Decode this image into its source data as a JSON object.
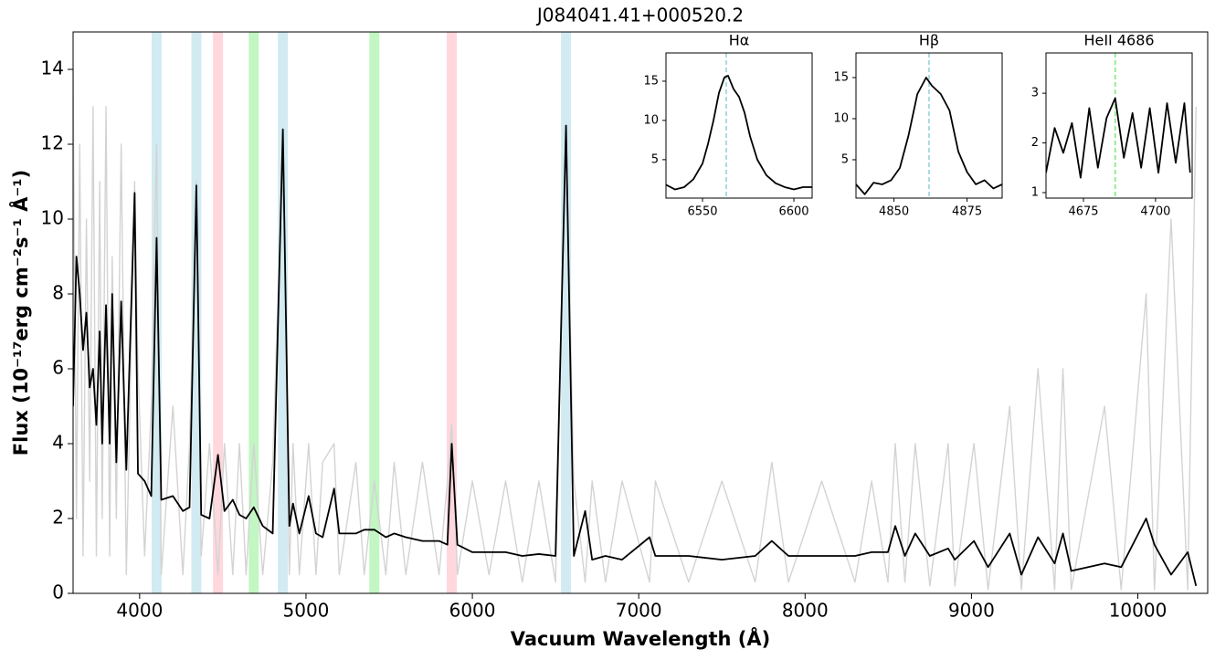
{
  "chart_data": [
    {
      "type": "line",
      "title": "J084041.41+000520.2",
      "x_label": "Vacuum Wavelength (Å)",
      "y_label": "Flux (10⁻¹⁷erg cm⁻²s⁻¹ Å⁻¹)",
      "xlim": [
        3600,
        10420
      ],
      "ylim": [
        0,
        15
      ],
      "xticks": [
        4000,
        5000,
        6000,
        7000,
        8000,
        9000,
        10000
      ],
      "yticks": [
        0,
        2,
        4,
        6,
        8,
        10,
        12,
        14
      ],
      "bands": [
        {
          "x": [
            4072,
            4132
          ],
          "color": "#add8e6"
        },
        {
          "x": [
            4311,
            4371
          ],
          "color": "#add8e6"
        },
        {
          "x": [
            4441,
            4501
          ],
          "color": "#ffb6c1"
        },
        {
          "x": [
            4656,
            4716
          ],
          "color": "#90ee90"
        },
        {
          "x": [
            4831,
            4891
          ],
          "color": "#add8e6"
        },
        {
          "x": [
            5381,
            5441
          ],
          "color": "#90ee90"
        },
        {
          "x": [
            5846,
            5906
          ],
          "color": "#ffb6c1"
        },
        {
          "x": [
            6533,
            6593
          ],
          "color": "#add8e6"
        }
      ],
      "x": [
        3600,
        3620,
        3640,
        3660,
        3680,
        3700,
        3720,
        3740,
        3760,
        3775,
        3798,
        3820,
        3835,
        3860,
        3889,
        3920,
        3970,
        3990,
        4030,
        4070,
        4102,
        4130,
        4200,
        4260,
        4300,
        4341,
        4370,
        4420,
        4471,
        4510,
        4560,
        4600,
        4640,
        4686,
        4740,
        4800,
        4861,
        4900,
        4922,
        4960,
        5016,
        5060,
        5100,
        5169,
        5200,
        5300,
        5350,
        5411,
        5480,
        5530,
        5600,
        5700,
        5800,
        5850,
        5876,
        5910,
        6000,
        6100,
        6200,
        6300,
        6400,
        6500,
        6563,
        6610,
        6678,
        6720,
        6800,
        6900,
        7065,
        7100,
        7300,
        7500,
        7700,
        7800,
        7900,
        8100,
        8300,
        8400,
        8498,
        8542,
        8600,
        8662,
        8750,
        8860,
        8900,
        9015,
        9100,
        9230,
        9300,
        9400,
        9500,
        9550,
        9600,
        9800,
        9900,
        10050,
        10100,
        10200,
        10300,
        10350
      ],
      "series": [
        {
          "color": "#d3d3d3",
          "values": [
            14,
            2,
            12,
            1,
            10,
            3,
            13,
            1,
            11,
            2,
            13,
            1,
            9,
            2,
            12,
            0.5,
            11,
            6,
            1,
            5,
            12,
            0.5,
            5,
            0.5,
            4,
            11,
            1,
            4,
            0.5,
            4,
            0.5,
            4,
            0.5,
            4,
            0.5,
            3.5,
            12,
            0.5,
            4,
            0.5,
            4,
            0.5,
            3.5,
            4,
            0.5,
            3.5,
            0.5,
            3,
            0.5,
            3.5,
            0.5,
            3.5,
            0.5,
            3,
            4.5,
            0.5,
            3,
            0.5,
            3,
            0.3,
            3,
            0.3,
            12.5,
            3,
            0.3,
            3,
            0.3,
            3,
            0.3,
            3,
            0.3,
            3,
            0.3,
            3.5,
            0.3,
            3,
            0.3,
            3,
            0.3,
            4,
            0.3,
            4,
            0.2,
            4,
            0.2,
            4,
            0.1,
            5,
            0.1,
            6,
            0.1,
            6,
            0.1,
            5,
            0.1,
            8,
            0.1,
            10,
            0.1,
            13
          ]
        },
        {
          "color": "#000000",
          "values": [
            5,
            9,
            8,
            6.5,
            7.5,
            5.5,
            6,
            4.5,
            7,
            4,
            7.7,
            4,
            8,
            3.5,
            7.8,
            3.3,
            10.7,
            3.2,
            3,
            2.6,
            9.5,
            2.5,
            2.6,
            2.2,
            2.3,
            10.9,
            2.1,
            2,
            3.7,
            2.2,
            2.5,
            2.1,
            2,
            2.3,
            1.8,
            1.6,
            12.4,
            1.8,
            2.4,
            1.6,
            2.6,
            1.6,
            1.5,
            2.8,
            1.6,
            1.6,
            1.7,
            1.7,
            1.5,
            1.6,
            1.5,
            1.4,
            1.4,
            1.3,
            4.0,
            1.3,
            1.1,
            1.1,
            1.1,
            1,
            1.05,
            1,
            12.5,
            1,
            2.2,
            0.9,
            1,
            0.9,
            1.5,
            1,
            1,
            0.9,
            1,
            1.4,
            1,
            1,
            1,
            1.1,
            1.1,
            1.8,
            1,
            1.6,
            1,
            1.2,
            0.9,
            1.4,
            0.7,
            1.6,
            0.5,
            1.5,
            0.8,
            1.6,
            0.6,
            0.8,
            0.7,
            2,
            1.3,
            0.5,
            1.1,
            0.2
          ]
        }
      ]
    },
    {
      "type": "line",
      "title": "Hα",
      "xlim": [
        6530,
        6610
      ],
      "ylim": [
        0.1,
        18.6
      ],
      "xticks": [
        6550,
        6600
      ],
      "yticks": [
        5,
        10,
        15
      ],
      "vline": {
        "x": 6563,
        "color": "#9ad0d8"
      },
      "x": [
        6530,
        6535,
        6540,
        6545,
        6550,
        6553,
        6556,
        6559,
        6562,
        6564,
        6567,
        6570,
        6573,
        6576,
        6580,
        6585,
        6590,
        6595,
        6600,
        6605,
        6610
      ],
      "series": [
        {
          "color": "#000000",
          "values": [
            1.8,
            1.2,
            1.5,
            2.5,
            4.5,
            7,
            10,
            13.5,
            15.5,
            15.7,
            14,
            13,
            11,
            8,
            5,
            3,
            2,
            1.5,
            1.2,
            1.5,
            1.5
          ]
        }
      ]
    },
    {
      "type": "line",
      "title": "Hβ",
      "xlim": [
        4837,
        4887
      ],
      "ylim": [
        0.33,
        18
      ],
      "xticks": [
        4850,
        4875
      ],
      "yticks": [
        5,
        10,
        15
      ],
      "vline": {
        "x": 4862,
        "color": "#9ad0d8"
      },
      "x": [
        4837,
        4840,
        4843,
        4846,
        4849,
        4852,
        4855,
        4858,
        4861,
        4863,
        4866,
        4869,
        4872,
        4875,
        4878,
        4881,
        4884,
        4887
      ],
      "series": [
        {
          "color": "#000000",
          "values": [
            2,
            0.8,
            2.2,
            2,
            2.5,
            4,
            8,
            13,
            15,
            14,
            13,
            11,
            6,
            3.5,
            2,
            2.5,
            1.5,
            2
          ]
        }
      ]
    },
    {
      "type": "line",
      "title": "HeII 4686",
      "xlim": [
        4662,
        4712.7
      ],
      "ylim": [
        0.89,
        3.81
      ],
      "xticks": [
        4675,
        4700
      ],
      "yticks": [
        1,
        2,
        3
      ],
      "vline": {
        "x": 4686,
        "color": "#7ee87e"
      },
      "x": [
        4662,
        4665,
        4668,
        4671,
        4674,
        4677,
        4680,
        4683,
        4686,
        4689,
        4692,
        4695,
        4698,
        4701,
        4704,
        4707,
        4710,
        4712
      ],
      "series": [
        {
          "color": "#000000",
          "values": [
            1.4,
            2.3,
            1.8,
            2.4,
            1.3,
            2.7,
            1.5,
            2.5,
            2.9,
            1.7,
            2.6,
            1.5,
            2.7,
            1.4,
            2.8,
            1.6,
            2.8,
            1.4
          ]
        }
      ]
    }
  ]
}
